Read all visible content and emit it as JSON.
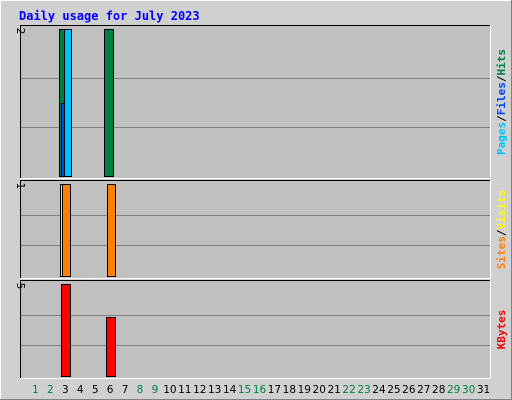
{
  "chart_data": {
    "type": "bar",
    "title": "Daily usage for July 2023",
    "days": [
      1,
      2,
      3,
      4,
      5,
      6,
      7,
      8,
      9,
      10,
      11,
      12,
      13,
      14,
      15,
      16,
      17,
      18,
      19,
      20,
      21,
      22,
      23,
      24,
      25,
      26,
      27,
      28,
      29,
      30,
      31
    ],
    "weekend_days": [
      1,
      2,
      8,
      9,
      15,
      16,
      22,
      23,
      29,
      30
    ],
    "panels": [
      {
        "id": "hits",
        "ymax": 2,
        "ymax_label": "2",
        "legend": [
          "Pages",
          "Files",
          "Hits"
        ],
        "legend_colors": [
          "#00c0ff",
          "#0040ff",
          "#008040"
        ],
        "series": [
          {
            "name": "Hits",
            "color": "#008040",
            "values": {
              "3": 2,
              "6": 2
            }
          },
          {
            "name": "Files",
            "color": "#0040ff",
            "values": {
              "3": 1
            }
          },
          {
            "name": "Pages",
            "color": "#00c0ff",
            "values": {
              "3": 2
            }
          }
        ]
      },
      {
        "id": "visits",
        "ymax": 1,
        "ymax_label": "1",
        "legend": [
          "Sites",
          "Visits"
        ],
        "legend_colors": [
          "#ff8000",
          "#ffff00"
        ],
        "series": [
          {
            "name": "Visits",
            "color": "#ffff00",
            "values": {
              "3": 1
            }
          },
          {
            "name": "Sites",
            "color": "#ff8000",
            "values": {
              "3": 1,
              "6": 1
            }
          }
        ]
      },
      {
        "id": "kbytes",
        "ymax": 5,
        "ymax_label": "5",
        "legend": [
          "KBytes"
        ],
        "legend_colors": [
          "#ff0000"
        ],
        "series": [
          {
            "name": "KBytes",
            "color": "#ff0000",
            "values": {
              "3": 5,
              "6": 3.2
            }
          }
        ]
      }
    ],
    "legend_placement": "right-vertical",
    "grid": true
  },
  "colors": {
    "title": "#0000ff",
    "weekday_tick": "#000000",
    "weekend_tick": "#008040",
    "plot_bg": "#c0c0c0",
    "frame_bg": "#ffffff"
  }
}
